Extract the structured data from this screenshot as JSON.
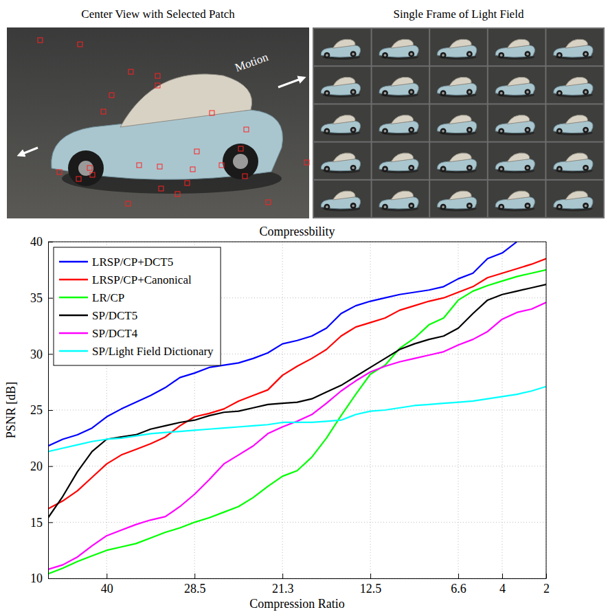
{
  "images": [
    {
      "title": "Center View with Selected Patch",
      "annotation": "Motion"
    },
    {
      "title": "Single Frame of Light Field"
    }
  ],
  "chart_data": {
    "type": "line",
    "title": "Compressbility",
    "x_label": "Compression Ratio",
    "y_label": "PSNR [dB]",
    "categories": [
      null,
      null,
      null,
      null,
      "40",
      null,
      null,
      null,
      null,
      null,
      "28.5",
      null,
      null,
      null,
      null,
      null,
      "21.3",
      null,
      null,
      null,
      null,
      null,
      "12.5",
      null,
      null,
      null,
      null,
      null,
      "6.6",
      null,
      null,
      "4",
      null,
      null,
      "2"
    ],
    "ylim": [
      10,
      40
    ],
    "yticks": [
      10,
      15,
      20,
      25,
      30,
      35,
      40
    ],
    "grid": true,
    "legend": "top-left",
    "series": [
      {
        "name": "LRSP/CP+DCT5",
        "color": "#0000ff",
        "values": [
          21.8,
          22.4,
          22.8,
          23.4,
          24.4,
          25.1,
          25.7,
          26.3,
          27.0,
          27.9,
          28.3,
          28.8,
          29.0,
          29.2,
          29.6,
          30.1,
          30.9,
          31.2,
          31.6,
          32.3,
          33.6,
          34.3,
          34.7,
          35.0,
          35.3,
          35.5,
          35.7,
          36.0,
          36.7,
          37.2,
          38.5,
          39.0,
          40.0,
          null,
          null
        ]
      },
      {
        "name": "LRSP/CP+Canonical",
        "color": "#ff0000",
        "values": [
          16.2,
          16.9,
          17.8,
          19.0,
          20.2,
          21.0,
          21.5,
          22.0,
          22.6,
          23.6,
          24.4,
          24.7,
          25.1,
          25.8,
          26.3,
          26.8,
          28.1,
          28.9,
          29.6,
          30.4,
          31.6,
          32.4,
          32.8,
          33.2,
          33.9,
          34.3,
          34.7,
          35.0,
          35.5,
          36.0,
          36.8,
          37.2,
          37.6,
          38.0,
          38.5
        ]
      },
      {
        "name": "LR/CP",
        "color": "#00ff00",
        "values": [
          10.4,
          10.9,
          11.5,
          12.0,
          12.5,
          12.8,
          13.1,
          13.6,
          14.1,
          14.5,
          15.0,
          15.4,
          15.9,
          16.4,
          17.2,
          18.2,
          19.1,
          19.6,
          20.8,
          22.5,
          24.5,
          26.4,
          28.2,
          29.0,
          30.5,
          31.4,
          32.6,
          33.2,
          34.8,
          35.6,
          36.1,
          36.5,
          36.9,
          37.2,
          37.5
        ]
      },
      {
        "name": "SP/DCT5",
        "color": "#000000",
        "values": [
          15.4,
          17.3,
          19.5,
          21.3,
          22.4,
          22.6,
          22.8,
          23.3,
          23.6,
          23.9,
          24.1,
          24.5,
          24.8,
          24.9,
          25.2,
          25.5,
          25.6,
          25.7,
          26.0,
          26.6,
          27.2,
          28.0,
          28.8,
          29.6,
          30.4,
          30.9,
          31.3,
          31.6,
          32.3,
          33.6,
          34.8,
          35.3,
          35.6,
          35.9,
          36.2
        ]
      },
      {
        "name": "SP/DCT4",
        "color": "#ff00ff",
        "values": [
          10.8,
          11.2,
          11.9,
          12.9,
          13.8,
          14.3,
          14.8,
          15.2,
          15.5,
          16.4,
          17.5,
          18.8,
          20.2,
          21.0,
          21.8,
          22.9,
          23.5,
          24.0,
          24.6,
          25.6,
          26.7,
          27.6,
          28.4,
          28.9,
          29.3,
          29.6,
          29.9,
          30.2,
          30.8,
          31.3,
          32.0,
          33.1,
          33.7,
          34.0,
          34.6
        ]
      },
      {
        "name": "SP/Light Field Dictionary",
        "color": "#00ffff",
        "values": [
          21.3,
          21.6,
          21.9,
          22.2,
          22.4,
          22.5,
          22.7,
          22.9,
          23.0,
          23.1,
          23.2,
          23.3,
          23.4,
          23.5,
          23.6,
          23.7,
          23.9,
          23.9,
          23.9,
          24.0,
          24.1,
          24.6,
          24.9,
          25.0,
          25.2,
          25.4,
          25.5,
          25.6,
          25.7,
          25.8,
          26.0,
          26.2,
          26.4,
          26.7,
          27.1
        ]
      }
    ]
  }
}
